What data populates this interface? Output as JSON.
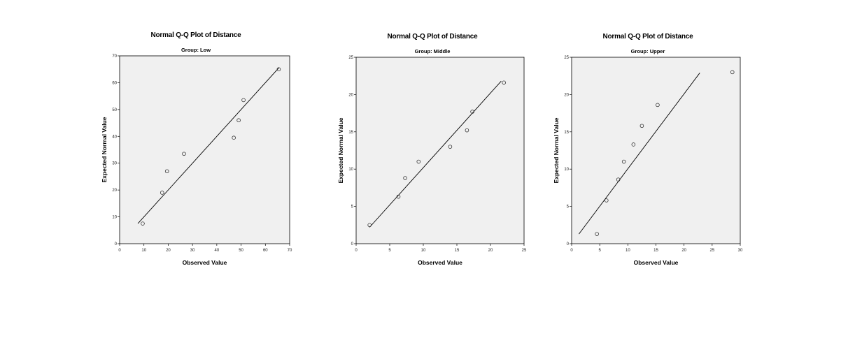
{
  "chart_data": [
    {
      "type": "scatter",
      "title": "Normal Q-Q Plot of Distance",
      "subtitle": "Group: Low",
      "xlabel": "Observed Value",
      "ylabel": "Expected Normal Value",
      "xlim": [
        0,
        70
      ],
      "ylim": [
        0,
        70
      ],
      "xticks": [
        0,
        10,
        20,
        30,
        40,
        50,
        60,
        70
      ],
      "yticks": [
        0,
        10,
        20,
        30,
        40,
        50,
        60,
        70
      ],
      "points": [
        {
          "x": 9.5,
          "y": 7.5
        },
        {
          "x": 17.5,
          "y": 19
        },
        {
          "x": 19.5,
          "y": 27
        },
        {
          "x": 26.5,
          "y": 33.5
        },
        {
          "x": 47,
          "y": 39.5
        },
        {
          "x": 49,
          "y": 46
        },
        {
          "x": 51,
          "y": 53.5
        },
        {
          "x": 65.5,
          "y": 65
        }
      ],
      "reference_line": [
        [
          7.5,
          7.5
        ],
        [
          65.5,
          65.5
        ]
      ],
      "background": "#f0f0f0"
    },
    {
      "type": "scatter",
      "title": "Normal Q-Q Plot of Distance",
      "subtitle": "Group: Middle",
      "xlabel": "Observed Value",
      "ylabel": "Expected Normal Value",
      "xlim": [
        0,
        25
      ],
      "ylim": [
        0,
        25
      ],
      "xticks": [
        0,
        5,
        10,
        15,
        20,
        25
      ],
      "yticks": [
        0,
        5,
        10,
        15,
        20,
        25
      ],
      "points": [
        {
          "x": 2,
          "y": 2.5
        },
        {
          "x": 6.3,
          "y": 6.3
        },
        {
          "x": 7.3,
          "y": 8.8
        },
        {
          "x": 9.3,
          "y": 11
        },
        {
          "x": 14,
          "y": 13
        },
        {
          "x": 16.5,
          "y": 15.2
        },
        {
          "x": 17.3,
          "y": 17.7
        },
        {
          "x": 22,
          "y": 21.6
        }
      ],
      "reference_line": [
        [
          2,
          2.2
        ],
        [
          21.6,
          21.8
        ]
      ],
      "background": "#f0f0f0"
    },
    {
      "type": "scatter",
      "title": "Normal Q-Q Plot of Distance",
      "subtitle": "Group: Upper",
      "xlabel": "Observed Value",
      "ylabel": "Expected Normal Value",
      "xlim": [
        0,
        30
      ],
      "ylim": [
        0,
        25
      ],
      "xticks": [
        0,
        5,
        10,
        15,
        20,
        25,
        30
      ],
      "yticks": [
        0,
        5,
        10,
        15,
        20,
        25
      ],
      "points": [
        {
          "x": 4.5,
          "y": 1.3
        },
        {
          "x": 6.2,
          "y": 5.8
        },
        {
          "x": 8.3,
          "y": 8.6
        },
        {
          "x": 9.3,
          "y": 11
        },
        {
          "x": 11,
          "y": 13.3
        },
        {
          "x": 12.5,
          "y": 15.8
        },
        {
          "x": 15.3,
          "y": 18.6
        },
        {
          "x": 28.6,
          "y": 23
        }
      ],
      "reference_line": [
        [
          1.3,
          1.3
        ],
        [
          22.8,
          22.9
        ]
      ],
      "background": "#f0f0f0"
    }
  ]
}
